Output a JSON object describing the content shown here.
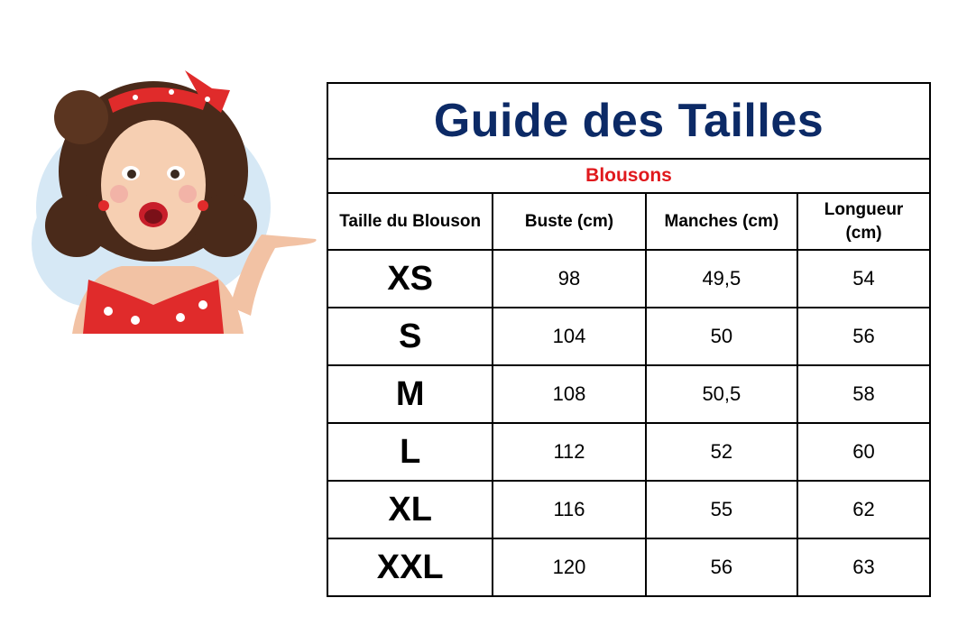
{
  "title": "Guide des Tailles",
  "subtitle": "Blousons",
  "colors": {
    "title": "#0c2a66",
    "subtitle": "#e0191d",
    "dress": "#e02b2b",
    "hair": "#4a2a1a"
  },
  "illustration": "pin-up-woman-pointing",
  "headers": [
    "Taille du Blouson",
    "Buste (cm)",
    "Manches (cm)",
    "Longueur (cm)"
  ],
  "rows": [
    {
      "size": "XS",
      "buste": "98",
      "manches": "49,5",
      "longueur": "54"
    },
    {
      "size": "S",
      "buste": "104",
      "manches": "50",
      "longueur": "56"
    },
    {
      "size": "M",
      "buste": "108",
      "manches": "50,5",
      "longueur": "58"
    },
    {
      "size": "L",
      "buste": "112",
      "manches": "52",
      "longueur": "60"
    },
    {
      "size": "XL",
      "buste": "116",
      "manches": "55",
      "longueur": "62"
    },
    {
      "size": "XXL",
      "buste": "120",
      "manches": "56",
      "longueur": "63"
    }
  ]
}
